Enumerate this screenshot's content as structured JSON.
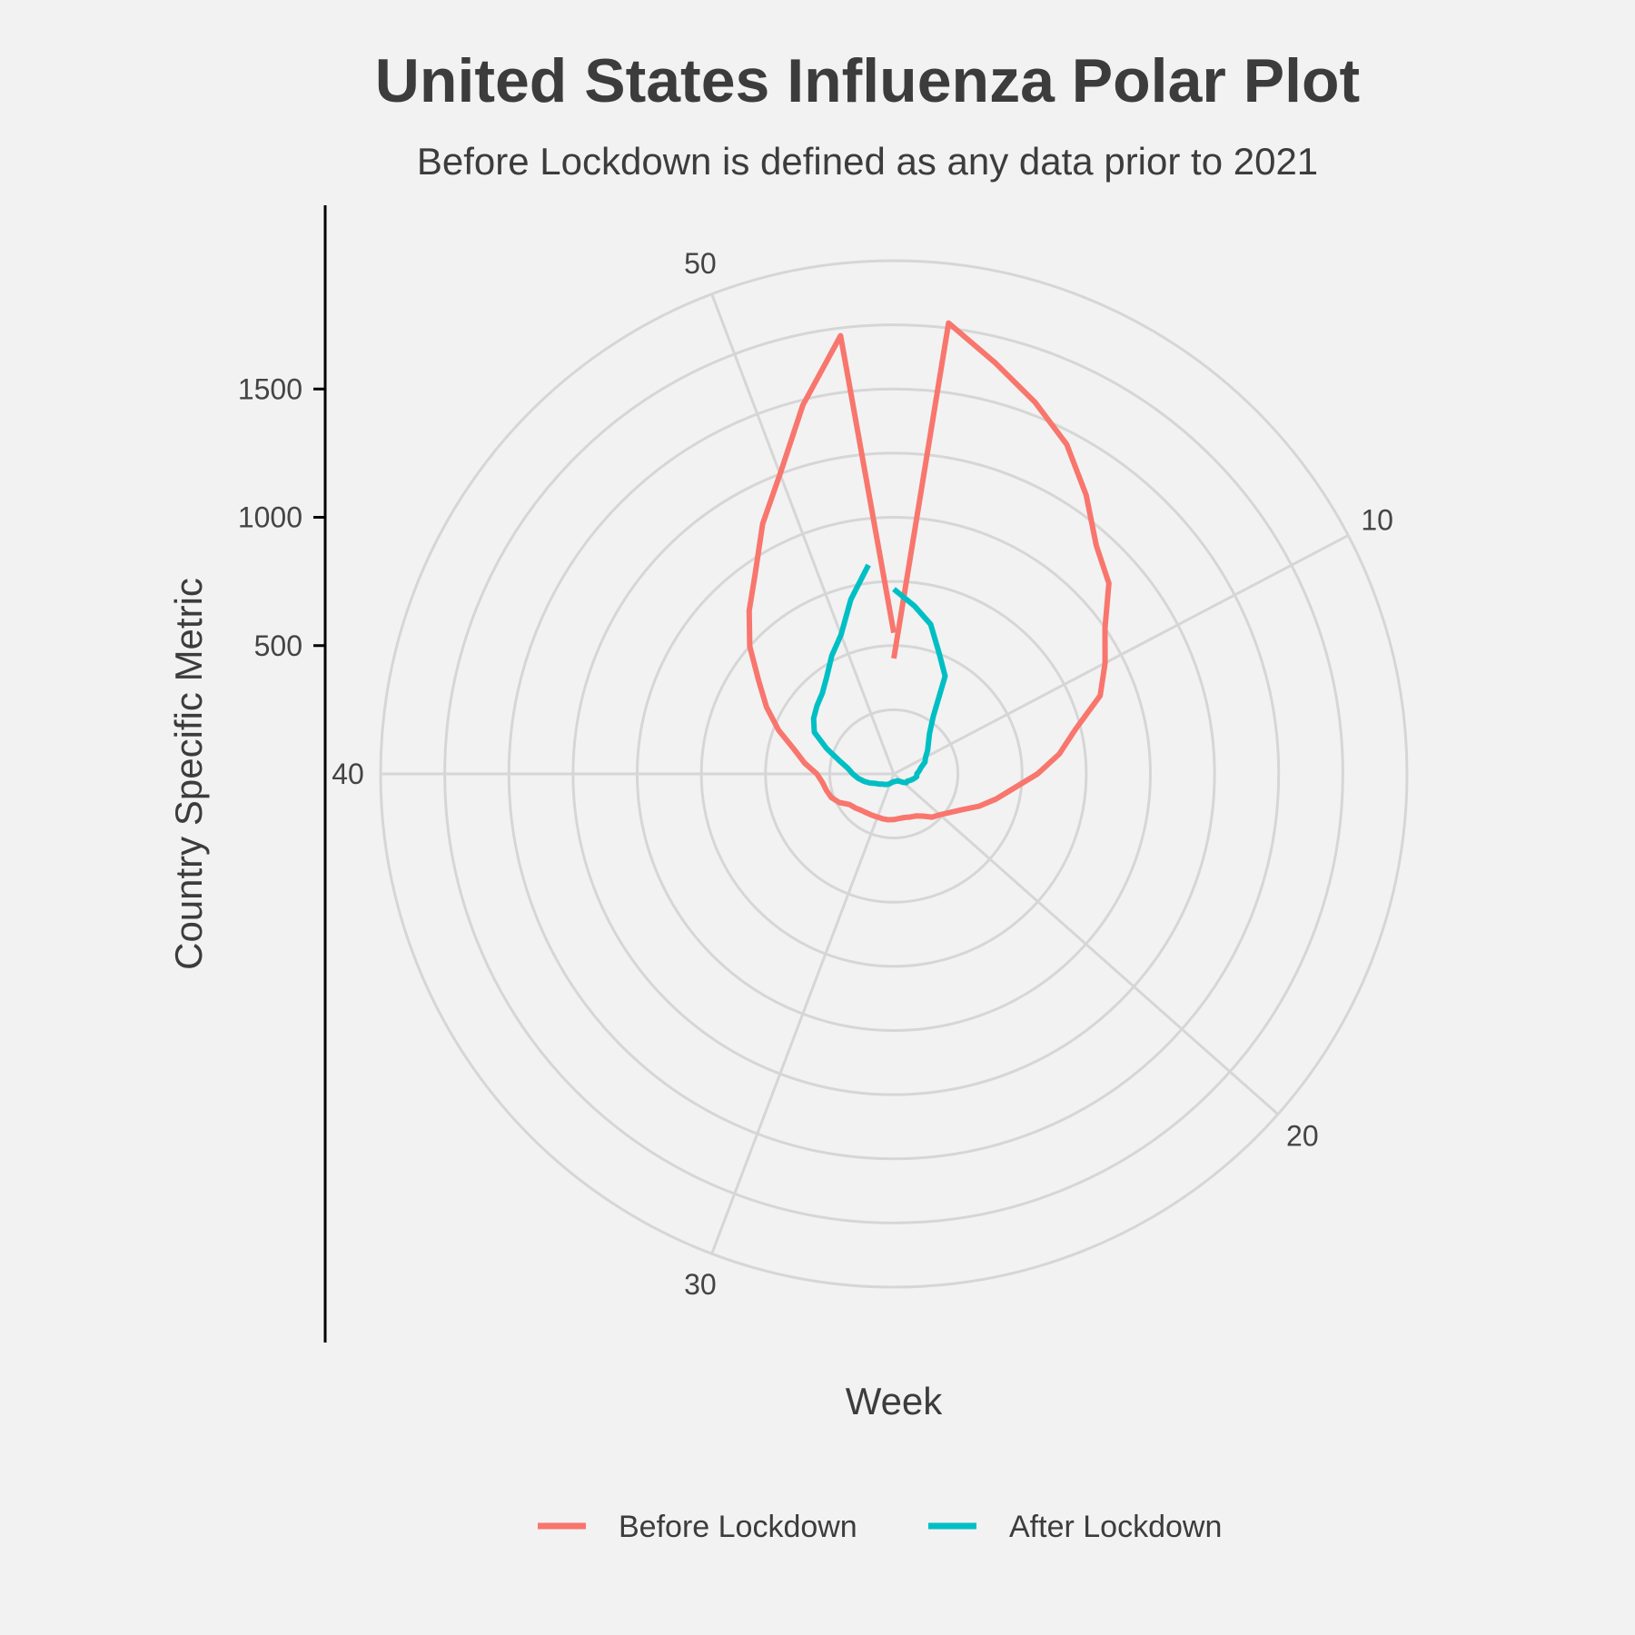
{
  "chart_data": {
    "type": "line",
    "coord": "polar",
    "title": "United States Influenza Polar Plot",
    "subtitle": "Before Lockdown is defined as any data prior to 2021",
    "xlabel": "Week",
    "ylabel": "Country Specific Metric",
    "x_range": [
      1,
      53
    ],
    "angle_ticks": [
      10,
      20,
      30,
      40,
      50
    ],
    "radial_ticks": [
      500,
      1000,
      1500
    ],
    "radial_range": [
      0,
      2000
    ],
    "legend_position": "bottom",
    "series": [
      {
        "name": "Before Lockdown",
        "color": "#f8766d",
        "x": [
          1,
          2,
          3,
          4,
          5,
          6,
          7,
          8,
          9,
          10,
          11,
          12,
          13,
          14,
          15,
          16,
          17,
          18,
          19,
          20,
          21,
          22,
          23,
          24,
          25,
          26,
          27,
          28,
          29,
          30,
          31,
          32,
          33,
          34,
          35,
          36,
          37,
          38,
          39,
          40,
          41,
          42,
          43,
          44,
          45,
          46,
          47,
          48,
          49,
          50,
          51,
          52,
          53
        ],
        "y": [
          450,
          1770,
          1650,
          1550,
          1450,
          1320,
          1190,
          1120,
          1000,
          930,
          860,
          730,
          650,
          560,
          470,
          410,
          355,
          300,
          265,
          240,
          225,
          200,
          185,
          180,
          175,
          175,
          178,
          180,
          180,
          180,
          182,
          185,
          190,
          200,
          210,
          240,
          260,
          270,
          280,
          300,
          350,
          400,
          480,
          560,
          640,
          750,
          850,
          950,
          1100,
          1250,
          1480,
          1720,
          550
        ],
        "value_labels": []
      },
      {
        "name": "After Lockdown",
        "color": "#00bfc4",
        "x": [
          1,
          2,
          3,
          4,
          5,
          6,
          7,
          8,
          9,
          10,
          11,
          12,
          13,
          14,
          15,
          16,
          17,
          18,
          19,
          20,
          21,
          22,
          23,
          24,
          25,
          26,
          27,
          28,
          29,
          30,
          31,
          32,
          33,
          34,
          35,
          36,
          37,
          38,
          39,
          40,
          41,
          42,
          43,
          44,
          45,
          46,
          47,
          48,
          49,
          50,
          51,
          52
        ],
        "y": [
          720,
          660,
          600,
          500,
          430,
          270,
          210,
          180,
          160,
          140,
          130,
          110,
          100,
          90,
          90,
          80,
          70,
          60,
          60,
          50,
          40,
          35,
          30,
          30,
          30,
          30,
          30,
          32,
          35,
          40,
          45,
          50,
          55,
          60,
          70,
          80,
          100,
          120,
          140,
          160,
          180,
          220,
          280,
          350,
          380,
          400,
          420,
          460,
          520,
          580,
          700,
          820
        ],
        "value_labels": []
      }
    ]
  }
}
